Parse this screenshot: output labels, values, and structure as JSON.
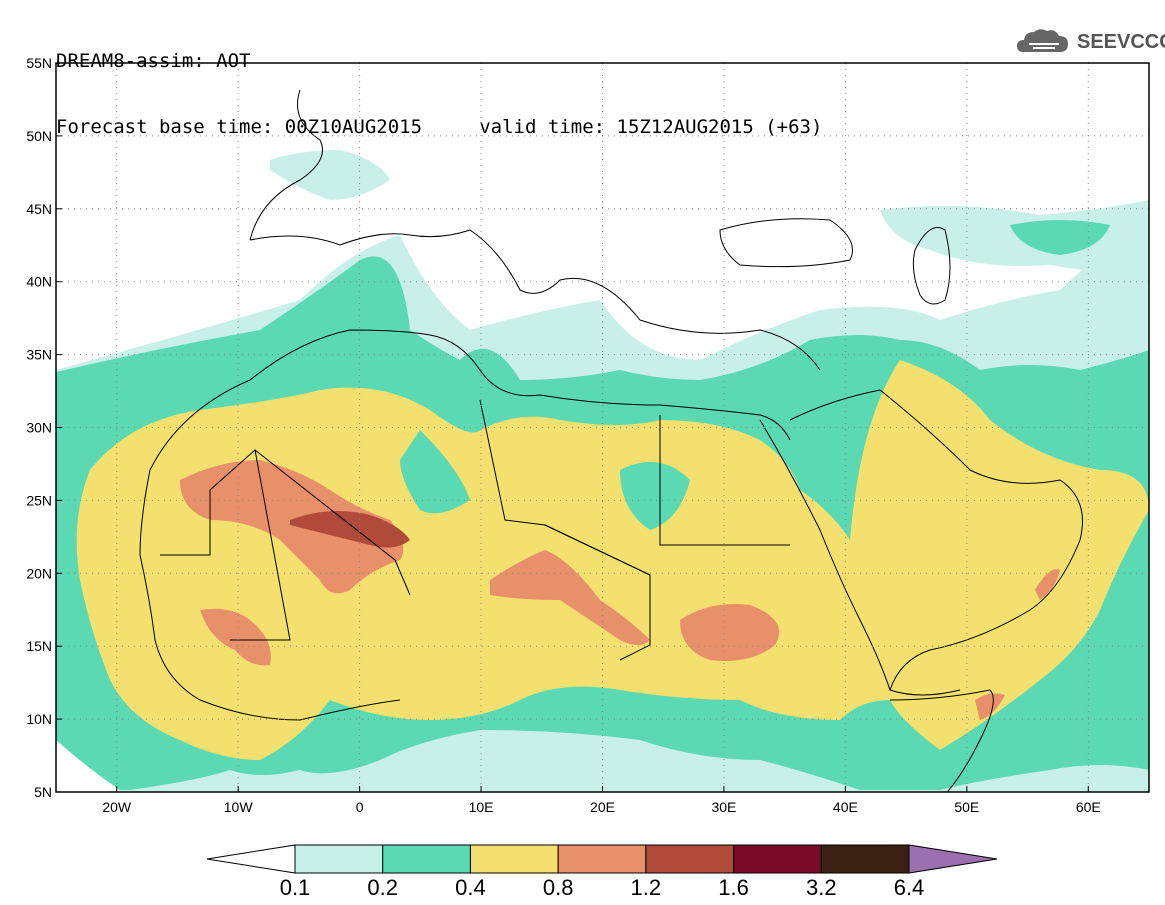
{
  "header": {
    "line1": "DREAM8-assim: AOT",
    "line2": "Forecast base time: 00Z10AUG2015     valid time: 15Z12AUG2015 (+63)"
  },
  "logo": {
    "text": "SEEVCCC",
    "icon": "cloud-icon"
  },
  "map": {
    "lon_range": [
      -25,
      65
    ],
    "lat_range": [
      5,
      55
    ],
    "x_ticks": [
      {
        "lon": -20,
        "label": "20W"
      },
      {
        "lon": -10,
        "label": "10W"
      },
      {
        "lon": 0,
        "label": "0"
      },
      {
        "lon": 10,
        "label": "10E"
      },
      {
        "lon": 20,
        "label": "20E"
      },
      {
        "lon": 30,
        "label": "30E"
      },
      {
        "lon": 40,
        "label": "40E"
      },
      {
        "lon": 50,
        "label": "50E"
      },
      {
        "lon": 60,
        "label": "60E"
      }
    ],
    "y_ticks": [
      {
        "lat": 55,
        "label": "55N"
      },
      {
        "lat": 50,
        "label": "50N"
      },
      {
        "lat": 45,
        "label": "45N"
      },
      {
        "lat": 40,
        "label": "40N"
      },
      {
        "lat": 35,
        "label": "35N"
      },
      {
        "lat": 30,
        "label": "30N"
      },
      {
        "lat": 25,
        "label": "25N"
      },
      {
        "lat": 20,
        "label": "20N"
      },
      {
        "lat": 15,
        "label": "15N"
      },
      {
        "lat": 10,
        "label": "10N"
      },
      {
        "lat": 5,
        "label": "5N"
      }
    ],
    "grid": "dotted"
  },
  "colorbar": {
    "labels": [
      "0.1",
      "0.2",
      "0.4",
      "0.8",
      "1.2",
      "1.6",
      "3.2",
      "6.4"
    ],
    "colors": [
      "#ffffff",
      "#c8f0e8",
      "#5ad9b3",
      "#f4e06e",
      "#e8906a",
      "#b04a3a",
      "#7a0a28",
      "#3a2010",
      "#9b6fb0"
    ]
  }
}
